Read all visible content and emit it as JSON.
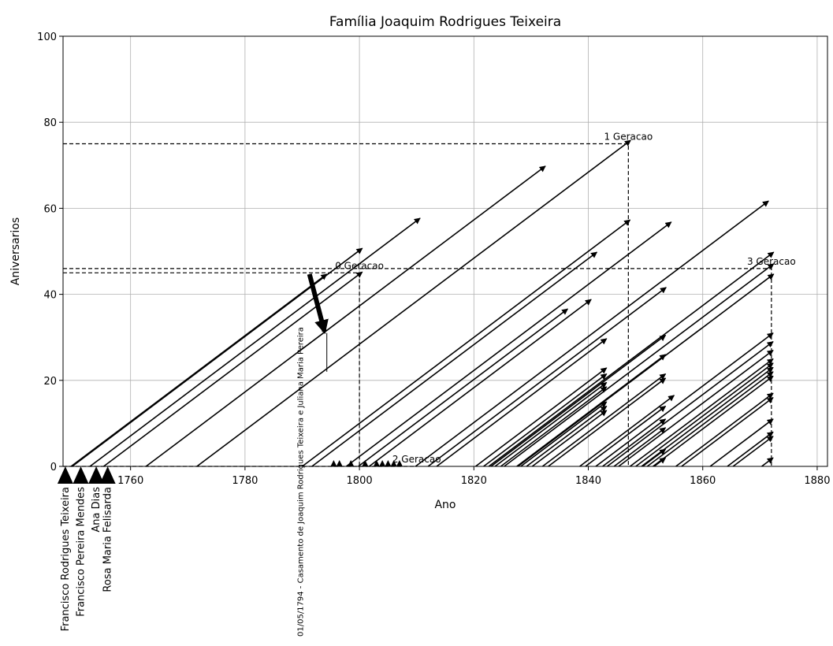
{
  "chart_data": {
    "type": "lifelines",
    "title": "Família Joaquim Rodrigues Teixeira",
    "xlabel": "Ano",
    "ylabel": "Aniversarios",
    "xlim": [
      1748.2,
      1881.8
    ],
    "ylim": [
      0,
      100
    ],
    "xticks": [
      1760,
      1780,
      1800,
      1820,
      1840,
      1860,
      1880
    ],
    "yticks": [
      0,
      20,
      40,
      60,
      80,
      100
    ],
    "grid": true,
    "color": "#000000",
    "lifelines": [
      {
        "birth": 1749.6,
        "age": 44.7
      },
      {
        "birth": 1749.8,
        "age": 50.7
      },
      {
        "birth": 1755.3,
        "age": 45.2
      },
      {
        "birth": 1752.9,
        "age": 57.7
      },
      {
        "birth": 1762.7,
        "age": 69.8
      },
      {
        "birth": 1771.6,
        "age": 75.8
      },
      {
        "birth": 1790,
        "age": 57.3
      },
      {
        "birth": 1791.7,
        "age": 49.8
      },
      {
        "birth": 1797.7,
        "age": 56.8
      },
      {
        "birth": 1809.8,
        "age": 61.7
      },
      {
        "birth": 1822.6,
        "age": 49.8
      },
      {
        "birth": 1825.3,
        "age": 47.1
      },
      {
        "birth": 1827.7,
        "age": 44.7
      },
      {
        "birth": 1812,
        "age": 41.6
      },
      {
        "birth": 1801.7,
        "age": 38.8
      },
      {
        "birth": 1799.8,
        "age": 36.6
      },
      {
        "birth": 1813.5,
        "age": 29.7
      },
      {
        "birth": 1820.3,
        "age": 22.9
      },
      {
        "birth": 1821.7,
        "age": 21.5
      },
      {
        "birth": 1823.7,
        "age": 19.5
      },
      {
        "birth": 1824.7,
        "age": 18.5
      },
      {
        "birth": 1828.2,
        "age": 15
      },
      {
        "birth": 1829.2,
        "age": 14
      },
      {
        "birth": 1830.2,
        "age": 13
      },
      {
        "birth": 1823,
        "age": 30.5
      },
      {
        "birth": 1827.5,
        "age": 26
      },
      {
        "birth": 1832,
        "age": 21.5
      },
      {
        "birth": 1833,
        "age": 20.5
      },
      {
        "birth": 1838.5,
        "age": 16.5
      },
      {
        "birth": 1839.5,
        "age": 14
      },
      {
        "birth": 1842.5,
        "age": 11
      },
      {
        "birth": 1844.5,
        "age": 9
      },
      {
        "birth": 1849.5,
        "age": 4
      },
      {
        "birth": 1851.5,
        "age": 2
      },
      {
        "birth": 1841.3,
        "age": 31
      },
      {
        "birth": 1843.3,
        "age": 29
      },
      {
        "birth": 1845.3,
        "age": 27
      },
      {
        "birth": 1847.3,
        "age": 25
      },
      {
        "birth": 1848.3,
        "age": 24
      },
      {
        "birth": 1849.3,
        "age": 23
      },
      {
        "birth": 1850.3,
        "age": 22
      },
      {
        "birth": 1851.3,
        "age": 21
      },
      {
        "birth": 1855.3,
        "age": 17
      },
      {
        "birth": 1856.3,
        "age": 16
      },
      {
        "birth": 1861.3,
        "age": 11
      },
      {
        "birth": 1864.3,
        "age": 8
      },
      {
        "birth": 1865.3,
        "age": 7
      },
      {
        "birth": 1870.3,
        "age": 2
      }
    ],
    "infant_deaths": [
      1795.5,
      1796.5,
      1798.5,
      1801,
      1803,
      1804,
      1805,
      1806,
      1807
    ],
    "founders": [
      {
        "name": "Francisco Rodrigues Teixeira",
        "year": 1748.6
      },
      {
        "name": "Francisco Pereira Mendes",
        "year": 1751.3
      },
      {
        "name": "Ana Dias",
        "year": 1754
      },
      {
        "name": "Rosa Maria Felisarda",
        "year": 1756
      }
    ],
    "generations": [
      {
        "label": "0 Geracao",
        "x": 1800,
        "y": 45
      },
      {
        "label": "1 Geracao",
        "x": 1847,
        "y": 75
      },
      {
        "label": "2 Geracao",
        "x": 1810,
        "y": 0
      },
      {
        "label": "3 Geracao",
        "x": 1872,
        "y": 46
      }
    ],
    "marriage": {
      "text": "01/05/1794 - Casamento de Joaquim Rodrigues Teixeira  e Juliana Maria Pereira",
      "x": 1794.3,
      "y": 22,
      "y_top": 31
    }
  }
}
